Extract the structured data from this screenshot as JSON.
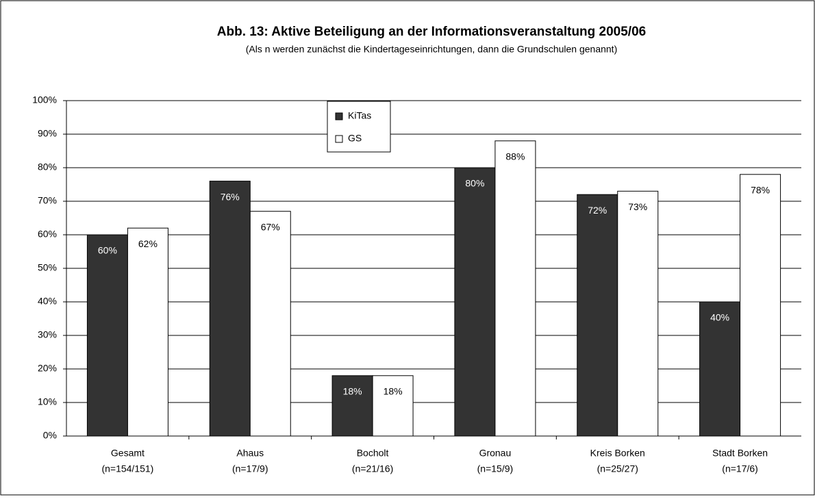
{
  "chart_data": {
    "type": "bar",
    "title": "Abb. 13: Aktive Beteiligung an der Informationsveranstaltung 2005/06",
    "subtitle": "(Als n werden zunächst die Kindertageseinrichtungen, dann die Grundschulen genannt)",
    "categories": [
      "Gesamt",
      "Ahaus",
      "Bocholt",
      "Gronau",
      "Kreis Borken",
      "Stadt Borken"
    ],
    "category_notes": [
      "(n=154/151)",
      "(n=17/9)",
      "(n=21/16)",
      "(n=15/9)",
      "(n=25/27)",
      "(n=17/6)"
    ],
    "series": [
      {
        "name": "KiTas",
        "color": "#333333",
        "values": [
          60,
          76,
          18,
          80,
          72,
          40
        ],
        "value_labels": [
          "60%",
          "76%",
          "18%",
          "80%",
          "72%",
          "40%"
        ]
      },
      {
        "name": "GS",
        "color": "#ffffff",
        "values": [
          62,
          67,
          18,
          88,
          73,
          78
        ],
        "value_labels": [
          "62%",
          "67%",
          "18%",
          "88%",
          "73%",
          "78%"
        ]
      }
    ],
    "ylim": [
      0,
      100
    ],
    "yticks": [
      {
        "value": 0,
        "label": "0%"
      },
      {
        "value": 10,
        "label": "10%"
      },
      {
        "value": 20,
        "label": "20%"
      },
      {
        "value": 30,
        "label": "30%"
      },
      {
        "value": 40,
        "label": "40%"
      },
      {
        "value": 50,
        "label": "50%"
      },
      {
        "value": 60,
        "label": "60%"
      },
      {
        "value": 70,
        "label": "70%"
      },
      {
        "value": 80,
        "label": "80%"
      },
      {
        "value": 90,
        "label": "90%"
      },
      {
        "value": 100,
        "label": "100%"
      }
    ],
    "grid": true,
    "legend": "top"
  }
}
